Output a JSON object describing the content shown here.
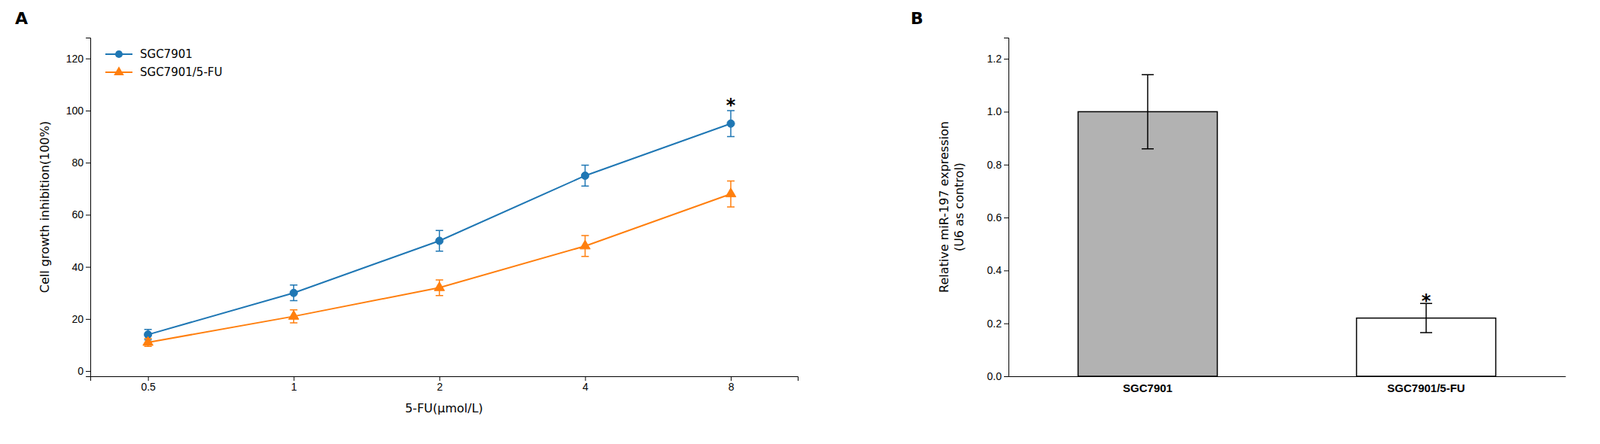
{
  "chart_data": [
    {
      "type": "line",
      "title": "A",
      "x": [
        0.5,
        1,
        2,
        4,
        8
      ],
      "series": [
        {
          "name": "SGC7901",
          "values": [
            14,
            30,
            50,
            75,
            95
          ],
          "errors": [
            2,
            3,
            4,
            4,
            5
          ],
          "marker": "circle"
        },
        {
          "name": "SGC7901/5-FU",
          "values": [
            11,
            21,
            32,
            48,
            68
          ],
          "errors": [
            1.5,
            2.5,
            3,
            4,
            5
          ],
          "marker": "triangle"
        }
      ],
      "xlabel": "5-FU(μmol/L)",
      "ylabel": "Cell growth inhibition(100%)",
      "log": "x",
      "xlim": [
        0.38,
        11
      ],
      "xticks": [
        0.5,
        1,
        2,
        4,
        8
      ],
      "ylim": [
        -2,
        128
      ],
      "yticks": [
        0,
        20,
        40,
        60,
        80,
        100,
        120
      ],
      "legend": "upper left",
      "annotations": [
        {
          "text": "*",
          "x": 8,
          "y": 102
        }
      ]
    },
    {
      "type": "bar",
      "title": "B",
      "categories": [
        "SGC7901",
        "SGC7901/5-FU"
      ],
      "values": [
        1.0,
        0.22
      ],
      "errors": [
        0.14,
        0.055
      ],
      "colors": [
        "#b2b2b2",
        "#ffffff"
      ],
      "ylabel": "Relative miR-197 expression\n(U6 as control)",
      "ylim": [
        0,
        1.28
      ],
      "yticks": [
        {
          "value": 0,
          "label": "0.0"
        },
        0.2,
        0.4,
        0.6,
        0.8,
        {
          "value": 1.0,
          "label": "1.0"
        },
        1.2
      ],
      "annotations": [
        {
          "text": "*",
          "x": "SGC7901/5-FU",
          "y": 0.285
        }
      ]
    }
  ]
}
